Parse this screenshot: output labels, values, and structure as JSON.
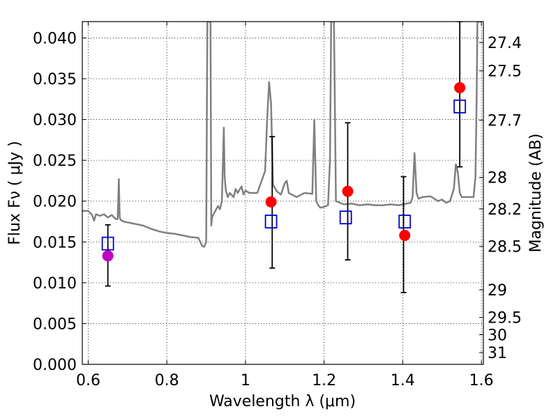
{
  "chart_data": {
    "type": "scatter",
    "title": "",
    "xlabel": "Wavelength  λ (μm)",
    "ylabel": "Flux  Fν  ( μJy )",
    "ylabel_right": "Magnitude (AB)",
    "xlim": [
      0.585,
      1.605
    ],
    "ylim": [
      0.0,
      0.042
    ],
    "grid": true,
    "x_ticks": [
      {
        "value": 0.6,
        "label": "0.6"
      },
      {
        "value": 0.8,
        "label": "0.8"
      },
      {
        "value": 1.0,
        "label": "1"
      },
      {
        "value": 1.2,
        "label": "1.2"
      },
      {
        "value": 1.4,
        "label": "1.4"
      },
      {
        "value": 1.6,
        "label": "1.6"
      }
    ],
    "y_ticks": [
      {
        "value": 0.0,
        "label": "0.000"
      },
      {
        "value": 0.005,
        "label": "0.005"
      },
      {
        "value": 0.01,
        "label": "0.010"
      },
      {
        "value": 0.015,
        "label": "0.015"
      },
      {
        "value": 0.02,
        "label": "0.020"
      },
      {
        "value": 0.025,
        "label": "0.025"
      },
      {
        "value": 0.03,
        "label": "0.030"
      },
      {
        "value": 0.035,
        "label": "0.035"
      },
      {
        "value": 0.04,
        "label": "0.040"
      }
    ],
    "right_ticks": [
      {
        "flux": 0.03943,
        "label": "27.4"
      },
      {
        "flux": 0.03597,
        "label": "27.5"
      },
      {
        "flux": 0.02991,
        "label": "27.7"
      },
      {
        "flux": 0.02291,
        "label": "28"
      },
      {
        "flux": 0.01905,
        "label": "28.2"
      },
      {
        "flux": 0.01445,
        "label": "28.5"
      },
      {
        "flux": 0.00912,
        "label": "29"
      },
      {
        "flux": 0.00575,
        "label": "29.5"
      },
      {
        "flux": 0.00363,
        "label": "30"
      },
      {
        "flux": 0.00145,
        "label": "31"
      }
    ],
    "series": [
      {
        "name": "model spectrum",
        "kind": "line",
        "color": "#808080",
        "x": [
          0.585,
          0.6,
          0.61,
          0.615,
          0.62,
          0.63,
          0.64,
          0.65,
          0.66,
          0.67,
          0.675,
          0.678,
          0.68,
          0.683,
          0.69,
          0.7,
          0.72,
          0.74,
          0.76,
          0.78,
          0.8,
          0.82,
          0.84,
          0.86,
          0.88,
          0.89,
          0.895,
          0.9,
          0.903,
          0.905,
          0.907,
          0.909,
          0.911,
          0.913,
          0.915,
          0.92,
          0.93,
          0.935,
          0.94,
          0.945,
          0.947,
          0.95,
          0.955,
          0.96,
          0.97,
          0.975,
          0.98,
          0.99,
          0.995,
          1.0,
          1.01,
          1.03,
          1.05,
          1.055,
          1.06,
          1.065,
          1.07,
          1.08,
          1.09,
          1.1,
          1.105,
          1.11,
          1.13,
          1.15,
          1.17,
          1.175,
          1.18,
          1.185,
          1.19,
          1.2,
          1.21,
          1.215,
          1.218,
          1.22,
          1.222,
          1.225,
          1.23,
          1.25,
          1.27,
          1.29,
          1.31,
          1.33,
          1.35,
          1.37,
          1.39,
          1.41,
          1.42,
          1.425,
          1.43,
          1.435,
          1.44,
          1.45,
          1.47,
          1.49,
          1.5,
          1.51,
          1.52,
          1.53,
          1.535,
          1.54,
          1.545,
          1.55,
          1.555,
          1.56,
          1.58,
          1.585,
          1.588,
          1.59,
          1.6
        ],
        "y": [
          0.0188,
          0.0188,
          0.0183,
          0.0176,
          0.0184,
          0.0182,
          0.0184,
          0.018,
          0.0183,
          0.0178,
          0.0178,
          0.0227,
          0.018,
          0.0177,
          0.0175,
          0.0174,
          0.0172,
          0.017,
          0.0166,
          0.0163,
          0.0161,
          0.016,
          0.0158,
          0.0156,
          0.0155,
          0.0145,
          0.0144,
          0.015,
          0.042,
          0.042,
          0.042,
          0.042,
          0.042,
          0.017,
          0.018,
          0.0185,
          0.0194,
          0.019,
          0.02,
          0.029,
          0.023,
          0.0213,
          0.0205,
          0.021,
          0.0205,
          0.0215,
          0.021,
          0.0218,
          0.0208,
          0.0213,
          0.021,
          0.021,
          0.0237,
          0.03,
          0.0346,
          0.032,
          0.022,
          0.0212,
          0.0208,
          0.0222,
          0.0225,
          0.021,
          0.0205,
          0.021,
          0.0209,
          0.03,
          0.02,
          0.0195,
          0.0192,
          0.0193,
          0.0195,
          0.025,
          0.042,
          0.042,
          0.042,
          0.042,
          0.02,
          0.0196,
          0.0197,
          0.0195,
          0.0196,
          0.0195,
          0.0195,
          0.0196,
          0.0195,
          0.0197,
          0.0198,
          0.0205,
          0.0259,
          0.021,
          0.0203,
          0.0205,
          0.0206,
          0.02,
          0.0202,
          0.0198,
          0.02,
          0.0215,
          0.0245,
          0.0235,
          0.021,
          0.0205,
          0.0205,
          0.0205,
          0.0205,
          0.023,
          0.033,
          0.042,
          0.042
        ]
      },
      {
        "name": "observed photometry",
        "kind": "points",
        "color": "#ff0000",
        "points": [
          {
            "x": 1.065,
            "y": 0.0199
          },
          {
            "x": 1.26,
            "y": 0.0212
          },
          {
            "x": 1.405,
            "y": 0.0158
          },
          {
            "x": 1.545,
            "y": 0.0339
          }
        ]
      },
      {
        "name": "observed photometry (optical)",
        "kind": "points",
        "color": "#bf00bf",
        "points": [
          {
            "x": 0.65,
            "y": 0.0133
          }
        ]
      },
      {
        "name": "model photometry",
        "kind": "squares",
        "color": "#0000cc",
        "points": [
          {
            "x": 0.65,
            "y": 0.0148
          },
          {
            "x": 1.065,
            "y": 0.0175
          },
          {
            "x": 1.255,
            "y": 0.018
          },
          {
            "x": 1.405,
            "y": 0.0175
          },
          {
            "x": 1.545,
            "y": 0.0316
          }
        ]
      },
      {
        "name": "error bars",
        "kind": "errorbars",
        "color": "#000000",
        "bars": [
          {
            "x": 0.65,
            "low": 0.0096,
            "high": 0.0171
          },
          {
            "x": 1.068,
            "low": 0.0118,
            "high": 0.0279
          },
          {
            "x": 1.26,
            "low": 0.0128,
            "high": 0.0296
          },
          {
            "x": 1.402,
            "low": 0.0088,
            "high": 0.023
          },
          {
            "x": 1.545,
            "low": 0.0242,
            "high": 0.042
          }
        ]
      }
    ]
  }
}
